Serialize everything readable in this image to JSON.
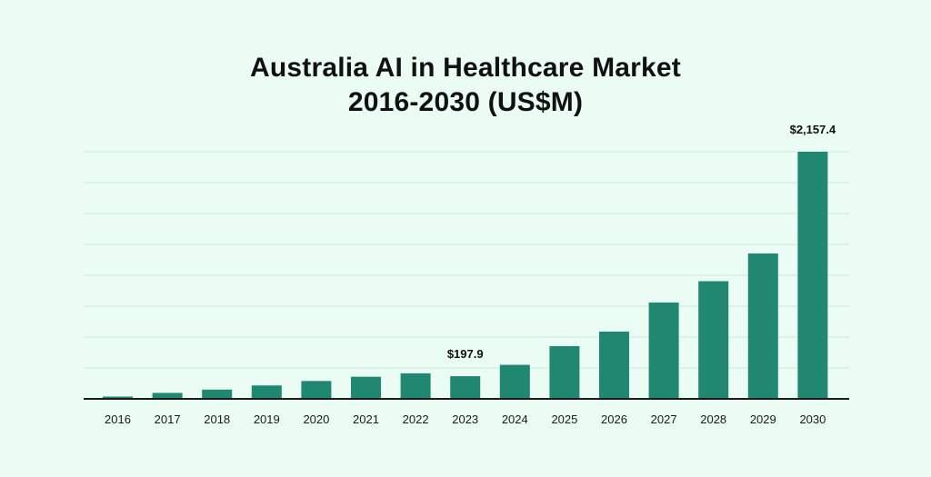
{
  "chart_data": {
    "type": "bar",
    "title_lines": [
      "Australia AI in Healthcare Market",
      "2016-2030 (US$M)"
    ],
    "xlabel": "",
    "ylabel": "",
    "categories": [
      "2016",
      "2017",
      "2018",
      "2019",
      "2020",
      "2021",
      "2022",
      "2023",
      "2024",
      "2025",
      "2026",
      "2027",
      "2028",
      "2029",
      "2030"
    ],
    "values": [
      20,
      52,
      81,
      117,
      156,
      193,
      223,
      197.9,
      297,
      460,
      587,
      841,
      1027,
      1269,
      2157.4
    ],
    "display_values": [
      20,
      52,
      81,
      117,
      156,
      193,
      223,
      197.9,
      297,
      460,
      587,
      841,
      1027,
      1269,
      2157.4
    ],
    "data_labels": [
      {
        "category": "2023",
        "text": "$197.9"
      },
      {
        "category": "2030",
        "text": "$2,157.4"
      }
    ],
    "grid": true,
    "legend": "none",
    "colors": {
      "bar": "#208770",
      "grid": "#cfe8de",
      "axis": "#1a1a1a",
      "background": "#eafcf3"
    }
  }
}
